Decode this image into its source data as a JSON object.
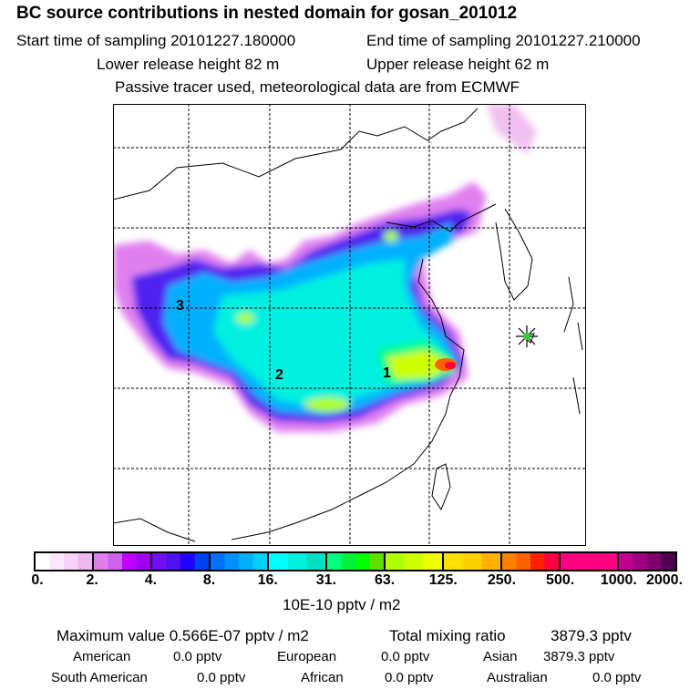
{
  "header": {
    "title": "BC  source contributions in nested domain for gosan_201012",
    "start_label": "Start time of sampling 20101227.180000",
    "end_label": "End time of sampling 20101227.210000",
    "lower_label": "Lower release height   82 m",
    "upper_label": "Upper release height   62 m",
    "note": "Passive tracer used, meteorological data are from ECMWF"
  },
  "map": {
    "markers": [
      "1",
      "2",
      "3"
    ],
    "receptor_icon": "star-icon"
  },
  "colorbar": {
    "ticks": [
      "0.",
      "2.",
      "4.",
      "8.",
      "16.",
      "31.",
      "63.",
      "125.",
      "250.",
      "500.",
      "1000.",
      "2000."
    ],
    "unit": "10E-10 pptv / m2",
    "segments": [
      [
        "#ffffff",
        "#ffe8ff",
        "#f8d0f8",
        "#f0b8f0"
      ],
      [
        "#e080f0",
        "#d060f0",
        "#c000ff",
        "#a000f0"
      ],
      [
        "#7010f0",
        "#5010f0",
        "#2000ff",
        "#0040f0"
      ],
      [
        "#0070ff",
        "#0090ff",
        "#00b0ff",
        "#00d0f8"
      ],
      [
        "#00ffff",
        "#00f0e0",
        "#00e0c0"
      ],
      [
        "#00ff80",
        "#00f040",
        "#00ff00",
        "#60e000"
      ],
      [
        "#b0ff00",
        "#d0ff00",
        "#f0ff00"
      ],
      [
        "#ffe000",
        "#ffd000",
        "#ffb000"
      ],
      [
        "#ff8000",
        "#ff6000",
        "#ff2000",
        "#ff0040"
      ],
      [
        "#ff0080",
        "#ff0080"
      ],
      [
        "#c00090",
        "#a00080",
        "#800070",
        "#500050"
      ]
    ]
  },
  "stats": {
    "max_label": "Maximum value  0.566E-07 pptv / m2",
    "total_label": "Total mixing ratio",
    "total_value": "3879.3 pptv",
    "american_label": "American",
    "american_value": "0.0 pptv",
    "european_label": "European",
    "european_value": "0.0 pptv",
    "asian_label": "Asian",
    "asian_value": "3879.3 pptv",
    "south_american_label": "South American",
    "south_american_value": "0.0 pptv",
    "african_label": "African",
    "african_value": "0.0 pptv",
    "australian_label": "Australian",
    "australian_value": "0.0 pptv"
  }
}
